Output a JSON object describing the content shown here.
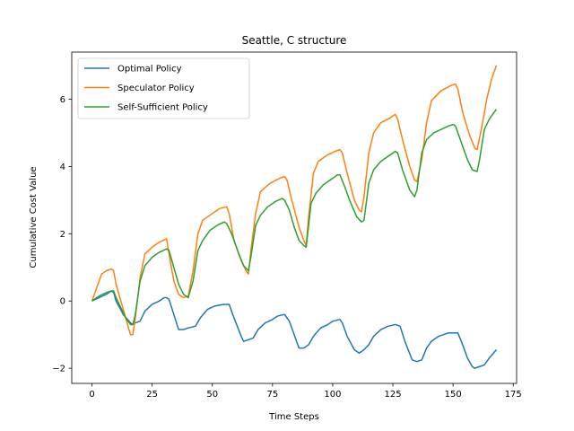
{
  "chart_data": {
    "type": "line",
    "title": "Seattle, C structure",
    "xlabel": "Time Steps",
    "ylabel": "Cumulative Cost Value",
    "xlim": [
      -8.4,
      176.4
    ],
    "ylim": [
      -2.45,
      7.4
    ],
    "xticks": [
      0,
      25,
      50,
      75,
      100,
      125,
      150,
      175
    ],
    "yticks": [
      -2,
      0,
      2,
      4,
      6
    ],
    "ytick_labels": [
      "−2",
      "0",
      "2",
      "4",
      "6"
    ],
    "grid": false,
    "legend_position": "upper-left",
    "series": [
      {
        "name": "Optimal Policy",
        "color": "#1f77b4",
        "points": [
          [
            0,
            0
          ],
          [
            3,
            0.1
          ],
          [
            6,
            0.2
          ],
          [
            8,
            0.3
          ],
          [
            9,
            0.25
          ],
          [
            10,
            0
          ],
          [
            13,
            -0.4
          ],
          [
            16,
            -0.65
          ],
          [
            17,
            -0.7
          ],
          [
            18,
            -0.65
          ],
          [
            20,
            -0.6
          ],
          [
            22,
            -0.3
          ],
          [
            25,
            -0.1
          ],
          [
            28,
            0
          ],
          [
            30,
            0.1
          ],
          [
            31,
            0.1
          ],
          [
            32,
            0.05
          ],
          [
            34,
            -0.4
          ],
          [
            36,
            -0.85
          ],
          [
            38,
            -0.85
          ],
          [
            40,
            -0.8
          ],
          [
            43,
            -0.75
          ],
          [
            45,
            -0.5
          ],
          [
            48,
            -0.25
          ],
          [
            51,
            -0.15
          ],
          [
            53,
            -0.12
          ],
          [
            55,
            -0.1
          ],
          [
            57,
            -0.1
          ],
          [
            59,
            -0.5
          ],
          [
            62,
            -1.05
          ],
          [
            63,
            -1.2
          ],
          [
            65,
            -1.15
          ],
          [
            67,
            -1.1
          ],
          [
            69,
            -0.85
          ],
          [
            72,
            -0.65
          ],
          [
            75,
            -0.55
          ],
          [
            77,
            -0.45
          ],
          [
            80,
            -0.4
          ],
          [
            82,
            -0.6
          ],
          [
            84,
            -1.0
          ],
          [
            86,
            -1.4
          ],
          [
            88,
            -1.4
          ],
          [
            90,
            -1.3
          ],
          [
            92,
            -1.05
          ],
          [
            95,
            -0.8
          ],
          [
            98,
            -0.7
          ],
          [
            100,
            -0.6
          ],
          [
            103,
            -0.55
          ],
          [
            104,
            -0.65
          ],
          [
            106,
            -1.05
          ],
          [
            109,
            -1.45
          ],
          [
            111,
            -1.55
          ],
          [
            113,
            -1.45
          ],
          [
            115,
            -1.3
          ],
          [
            117,
            -1.05
          ],
          [
            120,
            -0.85
          ],
          [
            123,
            -0.75
          ],
          [
            126,
            -0.7
          ],
          [
            128,
            -0.75
          ],
          [
            130,
            -1.2
          ],
          [
            133,
            -1.75
          ],
          [
            135,
            -1.8
          ],
          [
            137,
            -1.75
          ],
          [
            139,
            -1.4
          ],
          [
            141,
            -1.2
          ],
          [
            144,
            -1.05
          ],
          [
            146,
            -1.0
          ],
          [
            148,
            -0.95
          ],
          [
            150,
            -0.95
          ],
          [
            152,
            -0.95
          ],
          [
            154,
            -1.3
          ],
          [
            156,
            -1.7
          ],
          [
            158,
            -1.95
          ],
          [
            159,
            -2.0
          ],
          [
            161,
            -1.95
          ],
          [
            163,
            -1.9
          ],
          [
            165,
            -1.7
          ],
          [
            168,
            -1.45
          ]
        ]
      },
      {
        "name": "Speculator Policy",
        "color": "#ff7f0e",
        "points": [
          [
            0,
            0
          ],
          [
            2,
            0.4
          ],
          [
            4,
            0.8
          ],
          [
            6,
            0.9
          ],
          [
            8,
            0.95
          ],
          [
            9,
            0.9
          ],
          [
            10,
            0.5
          ],
          [
            12,
            0
          ],
          [
            14,
            -0.5
          ],
          [
            16,
            -1.0
          ],
          [
            17,
            -1.0
          ],
          [
            18,
            -0.5
          ],
          [
            20,
            0.7
          ],
          [
            22,
            1.4
          ],
          [
            25,
            1.6
          ],
          [
            28,
            1.75
          ],
          [
            31,
            1.85
          ],
          [
            32,
            1.4
          ],
          [
            34,
            0.6
          ],
          [
            36,
            0.2
          ],
          [
            38,
            0.1
          ],
          [
            40,
            0.15
          ],
          [
            42,
            0.9
          ],
          [
            44,
            2.0
          ],
          [
            46,
            2.4
          ],
          [
            50,
            2.6
          ],
          [
            53,
            2.75
          ],
          [
            56,
            2.8
          ],
          [
            57,
            2.6
          ],
          [
            59,
            1.8
          ],
          [
            62,
            1.2
          ],
          [
            64,
            0.9
          ],
          [
            65,
            0.8
          ],
          [
            66,
            1.5
          ],
          [
            68,
            2.6
          ],
          [
            70,
            3.25
          ],
          [
            74,
            3.5
          ],
          [
            78,
            3.65
          ],
          [
            80,
            3.7
          ],
          [
            81,
            3.6
          ],
          [
            83,
            3.0
          ],
          [
            86,
            2.2
          ],
          [
            88,
            1.8
          ],
          [
            89,
            1.65
          ],
          [
            90,
            2.5
          ],
          [
            92,
            3.8
          ],
          [
            94,
            4.15
          ],
          [
            98,
            4.35
          ],
          [
            101,
            4.45
          ],
          [
            103,
            4.5
          ],
          [
            104,
            4.4
          ],
          [
            106,
            3.8
          ],
          [
            109,
            3.0
          ],
          [
            111,
            2.7
          ],
          [
            112,
            2.65
          ],
          [
            113,
            3.1
          ],
          [
            115,
            4.4
          ],
          [
            117,
            5.0
          ],
          [
            120,
            5.3
          ],
          [
            124,
            5.45
          ],
          [
            126,
            5.55
          ],
          [
            127,
            5.4
          ],
          [
            129,
            4.8
          ],
          [
            132,
            4.0
          ],
          [
            134,
            3.6
          ],
          [
            135,
            3.55
          ],
          [
            137,
            4.2
          ],
          [
            139,
            5.3
          ],
          [
            141,
            5.95
          ],
          [
            145,
            6.25
          ],
          [
            149,
            6.4
          ],
          [
            151,
            6.45
          ],
          [
            152,
            6.3
          ],
          [
            154,
            5.6
          ],
          [
            157,
            4.9
          ],
          [
            159,
            4.55
          ],
          [
            160,
            4.5
          ],
          [
            162,
            5.2
          ],
          [
            164,
            6.0
          ],
          [
            166,
            6.6
          ],
          [
            168,
            7.0
          ]
        ]
      },
      {
        "name": "Self-Sufficient Policy",
        "color": "#2ca02c",
        "points": [
          [
            0,
            0
          ],
          [
            3,
            0.15
          ],
          [
            6,
            0.25
          ],
          [
            8,
            0.3
          ],
          [
            9,
            0.3
          ],
          [
            10,
            0.1
          ],
          [
            12,
            -0.2
          ],
          [
            14,
            -0.5
          ],
          [
            16,
            -0.7
          ],
          [
            17,
            -0.7
          ],
          [
            18,
            -0.4
          ],
          [
            20,
            0.6
          ],
          [
            22,
            1.05
          ],
          [
            25,
            1.3
          ],
          [
            28,
            1.45
          ],
          [
            31,
            1.55
          ],
          [
            32,
            1.5
          ],
          [
            34,
            1.0
          ],
          [
            36,
            0.5
          ],
          [
            38,
            0.2
          ],
          [
            40,
            0.1
          ],
          [
            42,
            0.6
          ],
          [
            44,
            1.5
          ],
          [
            46,
            1.8
          ],
          [
            49,
            2.1
          ],
          [
            52,
            2.25
          ],
          [
            55,
            2.35
          ],
          [
            56,
            2.3
          ],
          [
            58,
            2.0
          ],
          [
            61,
            1.4
          ],
          [
            63,
            1.05
          ],
          [
            65,
            0.9
          ],
          [
            66,
            1.3
          ],
          [
            68,
            2.25
          ],
          [
            70,
            2.55
          ],
          [
            73,
            2.8
          ],
          [
            76,
            2.95
          ],
          [
            79,
            3.05
          ],
          [
            80,
            3.0
          ],
          [
            82,
            2.7
          ],
          [
            84,
            2.2
          ],
          [
            86,
            1.8
          ],
          [
            88,
            1.65
          ],
          [
            89,
            1.6
          ],
          [
            91,
            2.9
          ],
          [
            93,
            3.2
          ],
          [
            96,
            3.45
          ],
          [
            99,
            3.6
          ],
          [
            102,
            3.75
          ],
          [
            103,
            3.75
          ],
          [
            105,
            3.4
          ],
          [
            107,
            3.0
          ],
          [
            110,
            2.5
          ],
          [
            112,
            2.35
          ],
          [
            113,
            2.4
          ],
          [
            115,
            3.5
          ],
          [
            117,
            3.9
          ],
          [
            120,
            4.15
          ],
          [
            123,
            4.3
          ],
          [
            126,
            4.45
          ],
          [
            127,
            4.4
          ],
          [
            129,
            3.9
          ],
          [
            132,
            3.3
          ],
          [
            134,
            3.1
          ],
          [
            135,
            3.3
          ],
          [
            137,
            4.4
          ],
          [
            139,
            4.8
          ],
          [
            142,
            5.0
          ],
          [
            145,
            5.1
          ],
          [
            148,
            5.2
          ],
          [
            150,
            5.25
          ],
          [
            151,
            5.2
          ],
          [
            153,
            4.8
          ],
          [
            156,
            4.2
          ],
          [
            158,
            3.9
          ],
          [
            160,
            3.85
          ],
          [
            161,
            4.2
          ],
          [
            163,
            5.1
          ],
          [
            165,
            5.4
          ],
          [
            168,
            5.7
          ]
        ]
      }
    ]
  }
}
